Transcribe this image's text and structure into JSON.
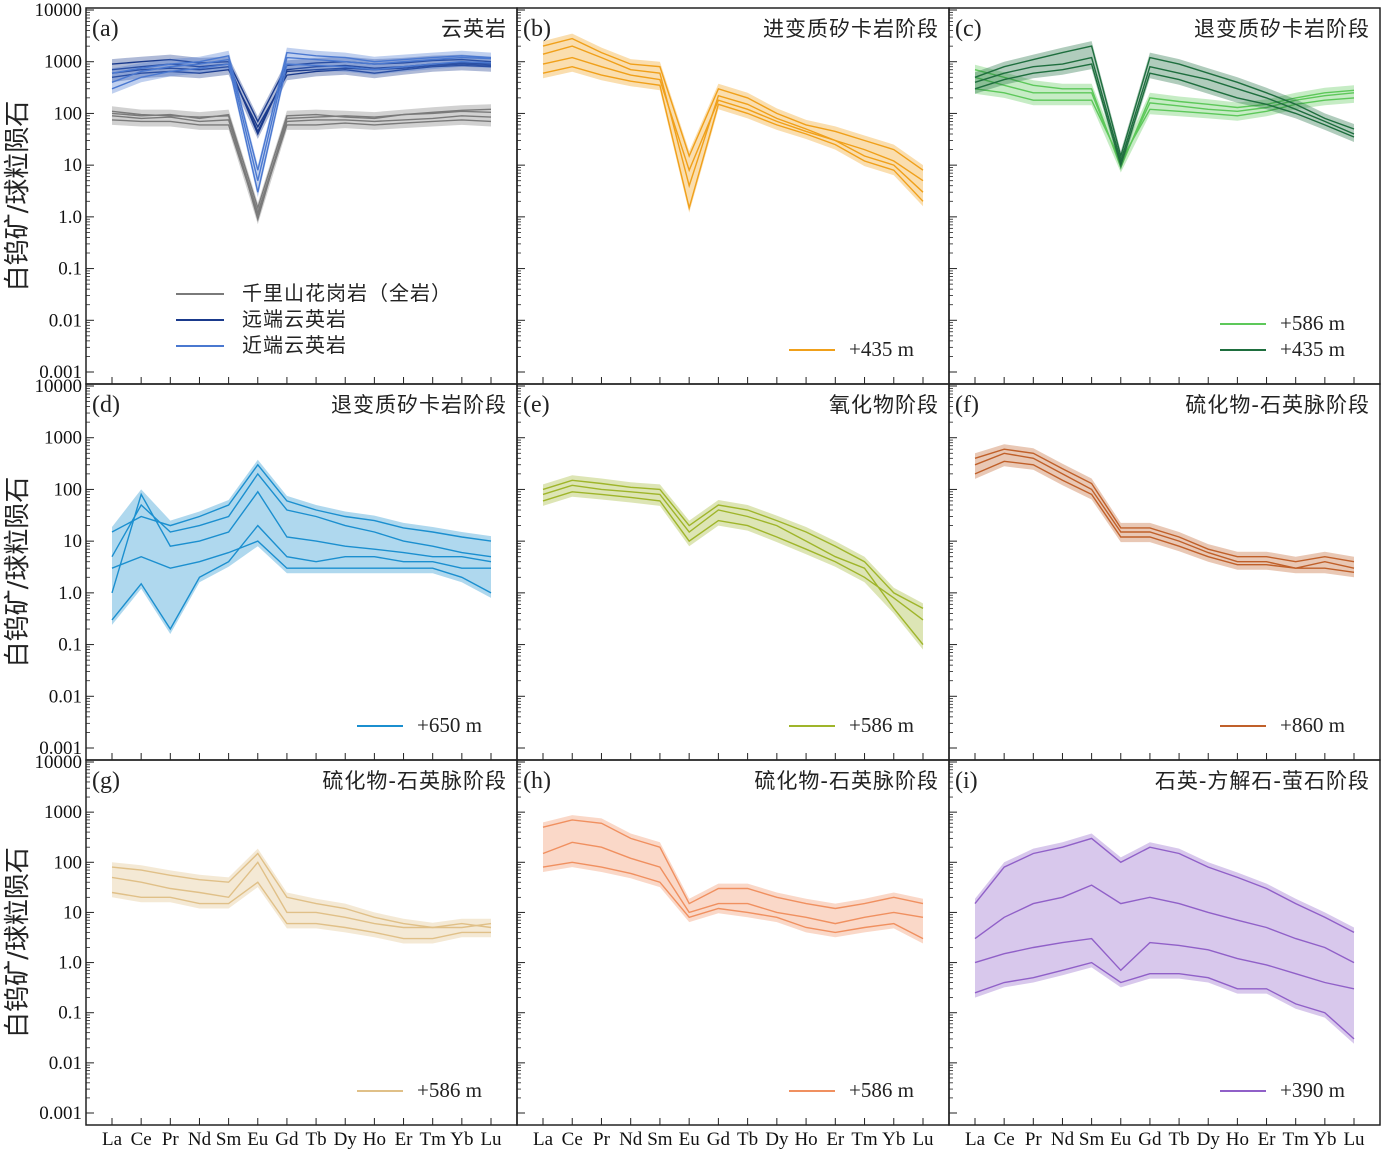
{
  "chart_data": {
    "type": "line",
    "ylabel": "白钨矿/球粒陨石",
    "yscale": "log",
    "ylim": [
      0.001,
      10000
    ],
    "yticks": [
      "0.001",
      "0.01",
      "0.1",
      "1.0",
      "10",
      "100",
      "1000",
      "10000"
    ],
    "categories": [
      "La",
      "Ce",
      "Pr",
      "Nd",
      "Sm",
      "Eu",
      "Gd",
      "Tb",
      "Dy",
      "Ho",
      "Er",
      "Tm",
      "Yb",
      "Lu"
    ],
    "panels": [
      {
        "tag": "(a)",
        "title": "云英岩",
        "series": [
          {
            "name": "千里山花岗岩（全岩）",
            "color": "#7a7a7a",
            "lines": [
              [
                110,
                95,
                90,
                85,
                90,
                0.9,
                80,
                85,
                90,
                85,
                95,
                100,
                110,
                105
              ],
              [
                90,
                80,
                85,
                70,
                75,
                1.2,
                70,
                75,
                75,
                70,
                75,
                80,
                90,
                85
              ],
              [
                100,
                90,
                95,
                80,
                95,
                1.5,
                90,
                95,
                85,
                80,
                95,
                105,
                115,
                120
              ],
              [
                75,
                70,
                70,
                60,
                60,
                1.1,
                60,
                60,
                65,
                60,
                65,
                70,
                75,
                70
              ]
            ]
          },
          {
            "name": "远端云英岩",
            "color": "#1a3a8c",
            "lines": [
              [
                700,
                800,
                900,
                800,
                900,
                40,
                700,
                800,
                850,
                750,
                800,
                900,
                950,
                900
              ],
              [
                500,
                600,
                650,
                600,
                700,
                55,
                550,
                650,
                700,
                600,
                700,
                800,
                850,
                800
              ],
              [
                900,
                1000,
                1100,
                950,
                1000,
                70,
                850,
                950,
                1000,
                900,
                950,
                1050,
                1100,
                1000
              ],
              [
                600,
                700,
                750,
                700,
                800,
                45,
                650,
                700,
                750,
                700,
                750,
                850,
                900,
                850
              ]
            ]
          },
          {
            "name": "近端云英岩",
            "color": "#4a78d0",
            "lines": [
              [
                400,
                650,
                800,
                900,
                1100,
                5,
                1200,
                1100,
                1000,
                900,
                1000,
                1100,
                1200,
                1150
              ],
              [
                600,
                750,
                900,
                1000,
                1300,
                8,
                1500,
                1300,
                1200,
                1000,
                1100,
                1200,
                1300,
                1200
              ],
              [
                300,
                500,
                650,
                750,
                900,
                3,
                900,
                850,
                800,
                700,
                800,
                900,
                1000,
                950
              ]
            ]
          }
        ]
      },
      {
        "tag": "(b)",
        "title": "进变质矽卡岩阶段",
        "series": [
          {
            "name": "+435 m",
            "color": "#f0a01a",
            "lines": [
              [
                1400,
                2000,
                1200,
                700,
                600,
                4,
                220,
                150,
                80,
                50,
                30,
                20,
                12,
                5
              ],
              [
                900,
                1200,
                800,
                550,
                450,
                8,
                180,
                120,
                70,
                45,
                30,
                15,
                10,
                3
              ],
              [
                600,
                800,
                550,
                420,
                350,
                1.5,
                150,
                100,
                60,
                40,
                25,
                12,
                8,
                2
              ],
              [
                2000,
                2800,
                1500,
                900,
                800,
                15,
                300,
                200,
                100,
                60,
                45,
                30,
                20,
                8
              ]
            ]
          }
        ]
      },
      {
        "tag": "(c)",
        "title": "退变质矽卡岩阶段",
        "series": [
          {
            "name": "+586 m",
            "color": "#5dc85a",
            "lines": [
              [
                500,
                350,
                250,
                250,
                250,
                10,
                160,
                140,
                120,
                110,
                130,
                180,
                220,
                250
              ],
              [
                300,
                250,
                180,
                180,
                180,
                12,
                120,
                110,
                100,
                90,
                110,
                150,
                180,
                200
              ],
              [
                700,
                500,
                350,
                300,
                300,
                9,
                200,
                170,
                150,
                130,
                150,
                200,
                250,
                280
              ]
            ]
          },
          {
            "name": "+435 m",
            "color": "#1e6e3e",
            "lines": [
              [
                500,
                800,
                1100,
                1500,
                2000,
                15,
                1200,
                900,
                600,
                400,
                250,
                150,
                80,
                50
              ],
              [
                400,
                600,
                800,
                900,
                1200,
                12,
                800,
                600,
                450,
                300,
                200,
                120,
                70,
                40
              ],
              [
                300,
                450,
                600,
                700,
                900,
                10,
                600,
                450,
                300,
                200,
                150,
                100,
                60,
                35
              ]
            ]
          }
        ]
      },
      {
        "tag": "(d)",
        "title": "退变质矽卡岩阶段",
        "series": [
          {
            "name": "+650 m",
            "color": "#1b8fcf",
            "lines": [
              [
                5,
                50,
                15,
                20,
                30,
                200,
                40,
                30,
                20,
                15,
                10,
                8,
                6,
                5
              ],
              [
                1,
                80,
                8,
                10,
                15,
                90,
                12,
                10,
                8,
                7,
                6,
                5,
                5,
                4
              ],
              [
                0.3,
                1.5,
                0.2,
                2,
                4,
                20,
                5,
                4,
                5,
                5,
                4,
                4,
                3,
                3
              ],
              [
                15,
                30,
                20,
                30,
                50,
                300,
                60,
                40,
                30,
                25,
                18,
                15,
                12,
                10
              ],
              [
                3,
                5,
                3,
                4,
                6,
                10,
                3,
                3,
                3,
                3,
                3,
                3,
                2,
                1
              ]
            ]
          }
        ]
      },
      {
        "tag": "(e)",
        "title": "氧化物阶段",
        "series": [
          {
            "name": "+586 m",
            "color": "#9fb52a",
            "lines": [
              [
                80,
                120,
                100,
                90,
                80,
                15,
                40,
                30,
                20,
                10,
                5,
                3,
                0.5,
                0.1
              ],
              [
                60,
                90,
                80,
                70,
                60,
                10,
                25,
                20,
                12,
                7,
                4,
                2,
                0.8,
                0.3
              ],
              [
                100,
                150,
                130,
                110,
                100,
                20,
                50,
                40,
                25,
                15,
                8,
                4,
                1,
                0.5
              ]
            ]
          }
        ]
      },
      {
        "tag": "(f)",
        "title": "硫化物-石英脉阶段",
        "series": [
          {
            "name": "+860 m",
            "color": "#c0602a",
            "lines": [
              [
                300,
                500,
                400,
                200,
                100,
                15,
                15,
                10,
                6,
                4,
                4,
                3,
                4,
                3
              ],
              [
                200,
                350,
                300,
                150,
                80,
                12,
                12,
                8,
                5,
                3.5,
                3.5,
                3,
                3,
                2.5
              ],
              [
                400,
                600,
                500,
                250,
                130,
                18,
                18,
                12,
                7,
                5,
                5,
                4,
                5,
                4
              ]
            ]
          }
        ]
      },
      {
        "tag": "(g)",
        "title": "硫化物-石英脉阶段",
        "series": [
          {
            "name": "+586 m",
            "color": "#e0c088",
            "lines": [
              [
                50,
                40,
                30,
                25,
                20,
                100,
                10,
                10,
                8,
                6,
                5,
                5,
                5,
                6
              ],
              [
                25,
                20,
                20,
                15,
                15,
                40,
                6,
                6,
                5,
                4,
                3,
                3,
                4,
                4
              ],
              [
                80,
                70,
                55,
                45,
                40,
                150,
                20,
                15,
                12,
                8,
                6,
                5,
                6,
                5
              ]
            ]
          }
        ]
      },
      {
        "tag": "(h)",
        "title": "硫化物-石英脉阶段",
        "series": [
          {
            "name": "+586 m",
            "color": "#f09060",
            "lines": [
              [
                500,
                700,
                600,
                300,
                200,
                15,
                30,
                30,
                20,
                15,
                12,
                15,
                20,
                15
              ],
              [
                150,
                250,
                200,
                120,
                80,
                10,
                15,
                15,
                10,
                8,
                6,
                8,
                10,
                8
              ],
              [
                80,
                100,
                80,
                60,
                40,
                8,
                12,
                10,
                8,
                5,
                4,
                5,
                6,
                3
              ]
            ]
          }
        ]
      },
      {
        "tag": "(i)",
        "title": "石英-方解石-萤石阶段",
        "series": [
          {
            "name": "+390 m",
            "color": "#9060c8",
            "lines": [
              [
                15,
                80,
                150,
                200,
                300,
                100,
                200,
                150,
                80,
                50,
                30,
                15,
                8,
                4
              ],
              [
                3,
                8,
                15,
                20,
                35,
                15,
                20,
                15,
                10,
                7,
                5,
                3,
                2,
                1
              ],
              [
                1,
                1.5,
                2,
                2.5,
                3,
                0.7,
                2.5,
                2.2,
                1.8,
                1.2,
                0.9,
                0.6,
                0.4,
                0.3
              ],
              [
                0.25,
                0.4,
                0.5,
                0.7,
                1.0,
                0.4,
                0.6,
                0.6,
                0.5,
                0.3,
                0.3,
                0.15,
                0.1,
                0.03
              ]
            ]
          }
        ]
      }
    ]
  }
}
